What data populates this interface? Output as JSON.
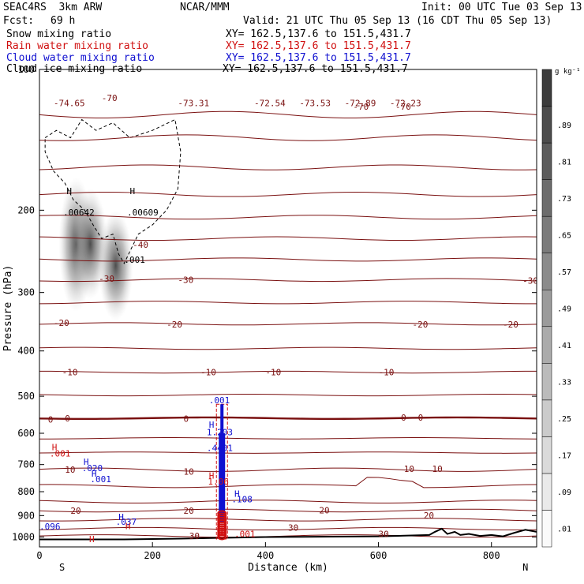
{
  "header": {
    "project": "SEAC4RS  3km ARW",
    "fcst_label": "Fcst:",
    "fcst_value": "69 h",
    "center": "NCAR/MMM",
    "init": "Init: 00 UTC Tue 03 Sep 13",
    "valid": "Valid: 21 UTC Thu 05 Sep 13 (16 CDT Thu 05 Sep 13)"
  },
  "fields": [
    {
      "name": "Snow mixing ratio",
      "xy": "XY= 162.5,137.6 to 151.5,431.7",
      "color": "#000000"
    },
    {
      "name": "Rain water mixing ratio",
      "xy": "XY= 162.5,137.6 to 151.5,431.7",
      "color": "#d01010"
    },
    {
      "name": "Cloud water mixing ratio",
      "xy": "XY= 162.5,137.6 to 151.5,431.7",
      "color": "#1010d0"
    },
    {
      "name": "Cloud ice mixing ratio",
      "xy": "XY= 162.5,137.6 to 151.5,431.7",
      "color": "#000000"
    }
  ],
  "colorbar": {
    "units": "g kg⁻¹",
    "levels": [
      ".01",
      ".09",
      ".17",
      ".25",
      ".33",
      ".41",
      ".49",
      ".57",
      ".65",
      ".73",
      ".81",
      ".89"
    ]
  },
  "chart_data": {
    "type": "cross-section",
    "xlabel": "Distance (km)",
    "ylabel": "Pressure (hPa)",
    "xlim": [
      0,
      880
    ],
    "ylim": [
      1050,
      100
    ],
    "y_log_pressure": true,
    "x_ticks": [
      "0",
      "200",
      "400",
      "600",
      "800"
    ],
    "y_ticks": [
      "100",
      "200",
      "300",
      "400",
      "500",
      "600",
      "700",
      "800",
      "900",
      "1000"
    ],
    "x_end_labels": {
      "left": "S",
      "right": "N"
    },
    "temperature_labels": [
      {
        "x": 25,
        "p": 118,
        "text": "-74.65"
      },
      {
        "x": 110,
        "p": 115,
        "text": "-70"
      },
      {
        "x": 245,
        "p": 118,
        "text": "-73.31"
      },
      {
        "x": 380,
        "p": 118,
        "text": "-72.54"
      },
      {
        "x": 460,
        "p": 118,
        "text": "-73.53"
      },
      {
        "x": 540,
        "p": 118,
        "text": "-72.89"
      },
      {
        "x": 620,
        "p": 118,
        "text": "-72.23"
      },
      {
        "x": 630,
        "p": 120,
        "text": "-70"
      },
      {
        "x": 555,
        "p": 120,
        "text": "-70"
      },
      {
        "x": 165,
        "p": 237,
        "text": "-40"
      },
      {
        "x": 105,
        "p": 280,
        "text": "-30"
      },
      {
        "x": 245,
        "p": 282,
        "text": "-30"
      },
      {
        "x": 855,
        "p": 283,
        "text": "-30"
      },
      {
        "x": 25,
        "p": 348,
        "text": "-20"
      },
      {
        "x": 225,
        "p": 351,
        "text": "-20"
      },
      {
        "x": 660,
        "p": 351,
        "text": "-20"
      },
      {
        "x": 820,
        "p": 351,
        "text": "-20"
      },
      {
        "x": 40,
        "p": 444,
        "text": "-10"
      },
      {
        "x": 285,
        "p": 444,
        "text": "-10"
      },
      {
        "x": 600,
        "p": 444,
        "text": "-10"
      },
      {
        "x": 400,
        "p": 444,
        "text": "-10"
      },
      {
        "x": 15,
        "p": 560,
        "text": "0"
      },
      {
        "x": 45,
        "p": 557,
        "text": "0"
      },
      {
        "x": 255,
        "p": 558,
        "text": "0"
      },
      {
        "x": 640,
        "p": 555,
        "text": "0"
      },
      {
        "x": 670,
        "p": 555,
        "text": "0"
      },
      {
        "x": 45,
        "p": 718,
        "text": "10"
      },
      {
        "x": 255,
        "p": 725,
        "text": "10"
      },
      {
        "x": 645,
        "p": 715,
        "text": "10"
      },
      {
        "x": 695,
        "p": 715,
        "text": "10"
      },
      {
        "x": 55,
        "p": 878,
        "text": "20"
      },
      {
        "x": 255,
        "p": 878,
        "text": "20"
      },
      {
        "x": 495,
        "p": 876,
        "text": "20"
      },
      {
        "x": 680,
        "p": 898,
        "text": "20"
      },
      {
        "x": 440,
        "p": 955,
        "text": "30"
      },
      {
        "x": 600,
        "p": 985,
        "text": "30"
      },
      {
        "x": 265,
        "p": 995,
        "text": "30"
      }
    ],
    "extrema_labels": [
      {
        "x": 48,
        "p": 182,
        "text": "H",
        "color": "#000000"
      },
      {
        "x": 42,
        "p": 202,
        "text": ".00642",
        "color": "#000000"
      },
      {
        "x": 160,
        "p": 182,
        "text": "H",
        "color": "#000000"
      },
      {
        "x": 155,
        "p": 202,
        "text": ".00609",
        "color": "#000000"
      },
      {
        "x": 150,
        "p": 255,
        "text": ".001",
        "color": "#000000"
      },
      {
        "x": 22,
        "p": 642,
        "text": "H",
        "color": "#d01010"
      },
      {
        "x": 18,
        "p": 662,
        "text": ".001",
        "color": "#d01010"
      },
      {
        "x": 78,
        "p": 690,
        "text": "H",
        "color": "#1010d0"
      },
      {
        "x": 75,
        "p": 712,
        "text": ".020",
        "color": "#1010d0"
      },
      {
        "x": 92,
        "p": 732,
        "text": "H",
        "color": "#1010d0"
      },
      {
        "x": 90,
        "p": 752,
        "text": ".001",
        "color": "#1010d0"
      },
      {
        "x": 345,
        "p": 808,
        "text": "H",
        "color": "#1010d0"
      },
      {
        "x": 340,
        "p": 830,
        "text": ".108",
        "color": "#1010d0"
      },
      {
        "x": 140,
        "p": 906,
        "text": "H",
        "color": "#1010d0"
      },
      {
        "x": 135,
        "p": 928,
        "text": ".037",
        "color": "#1010d0"
      },
      {
        "x": 152,
        "p": 948,
        "text": "H",
        "color": "#d01010"
      },
      {
        "x": 0,
        "p": 950,
        "text": ".096",
        "color": "#1010d0"
      },
      {
        "x": 88,
        "p": 1010,
        "text": "H",
        "color": "#d01010"
      },
      {
        "x": 300,
        "p": 575,
        "text": "H",
        "color": "#1010d0"
      },
      {
        "x": 296,
        "p": 596,
        "text": "1.203",
        "color": "#1010d0"
      },
      {
        "x": 296,
        "p": 645,
        "text": ".4401",
        "color": "#1010d0"
      },
      {
        "x": 300,
        "p": 738,
        "text": "H",
        "color": "#d01010"
      },
      {
        "x": 298,
        "p": 760,
        "text": "1.06",
        "color": "#d01010"
      },
      {
        "x": 300,
        "p": 510,
        "text": ".001",
        "color": "#1010d0"
      },
      {
        "x": 345,
        "p": 985,
        "text": ".001",
        "color": "#d01010"
      }
    ],
    "convective_column": {
      "x_center": 323,
      "p_top": 520,
      "p_bottom": 1010
    },
    "snow_blobs": [
      {
        "x": 65,
        "p_top": 170,
        "p_bottom": 330
      },
      {
        "x": 90,
        "p_top": 180,
        "p_bottom": 310
      },
      {
        "x": 135,
        "p_top": 200,
        "p_bottom": 345
      }
    ]
  }
}
